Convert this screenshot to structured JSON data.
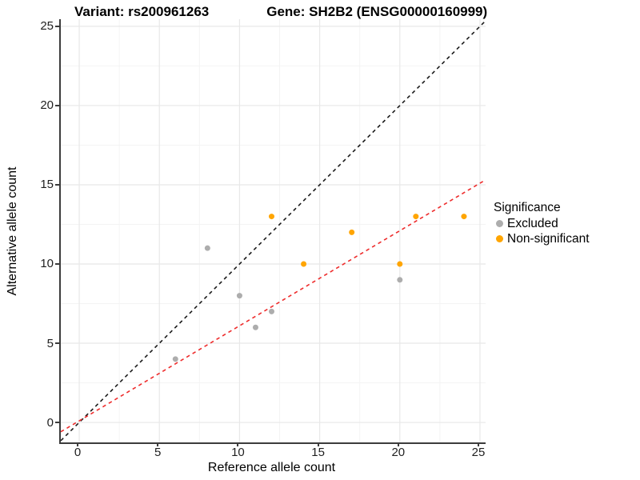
{
  "titles": {
    "variant": "Variant: rs200961263",
    "gene": "Gene: SH2B2 (ENSG00000160999)"
  },
  "axes": {
    "x_label": "Reference allele count",
    "y_label": "Alternative allele count",
    "x_ticks": [
      0,
      5,
      10,
      15,
      20,
      25
    ],
    "y_ticks": [
      0,
      5,
      10,
      15,
      20,
      25
    ]
  },
  "legend": {
    "title": "Significance",
    "items": [
      {
        "label": "Excluded",
        "color": "#ADADAD"
      },
      {
        "label": "Non-significant",
        "color": "#FFA500"
      }
    ]
  },
  "colors": {
    "excluded_point": "#ADADAD",
    "non_significant_point": "#FFA500",
    "identity_line": "#1A1A1A",
    "regression_line": "#EE2C2C",
    "major_grid": "#E8E8E8",
    "minor_grid": "#F4F4F4",
    "axis_line": "#3C3C3C"
  },
  "chart_data": {
    "type": "scatter",
    "title": "Variant: rs200961263   Gene: SH2B2 (ENSG00000160999)",
    "xlabel": "Reference allele count",
    "ylabel": "Alternative allele count",
    "xlim": [
      -1.15,
      25.35
    ],
    "ylim": [
      -1.26,
      25.45
    ],
    "x_major_ticks": [
      0,
      5,
      10,
      15,
      20,
      25
    ],
    "y_major_ticks": [
      0,
      5,
      10,
      15,
      20,
      25
    ],
    "minor_ticks": [
      2.5,
      7.5,
      12.5,
      17.5,
      22.5
    ],
    "grid": true,
    "legend_position": "right",
    "series": [
      {
        "name": "Excluded",
        "color": "#ADADAD",
        "points": [
          [
            6,
            4
          ],
          [
            8,
            11
          ],
          [
            10,
            8
          ],
          [
            11,
            6
          ],
          [
            12,
            7
          ],
          [
            20,
            9
          ]
        ]
      },
      {
        "name": "Non-significant",
        "color": "#FFA500",
        "points": [
          [
            12,
            13
          ],
          [
            14,
            10
          ],
          [
            17,
            12
          ],
          [
            20,
            10
          ],
          [
            21,
            13
          ],
          [
            24,
            13
          ]
        ]
      }
    ],
    "lines": [
      {
        "name": "identity",
        "slope": 1.0,
        "intercept": 0.0,
        "style": "dashed",
        "color": "#1A1A1A"
      },
      {
        "name": "regression",
        "slope": 0.6,
        "intercept": 0.1,
        "style": "dashed",
        "color": "#EE2C2C"
      }
    ]
  }
}
